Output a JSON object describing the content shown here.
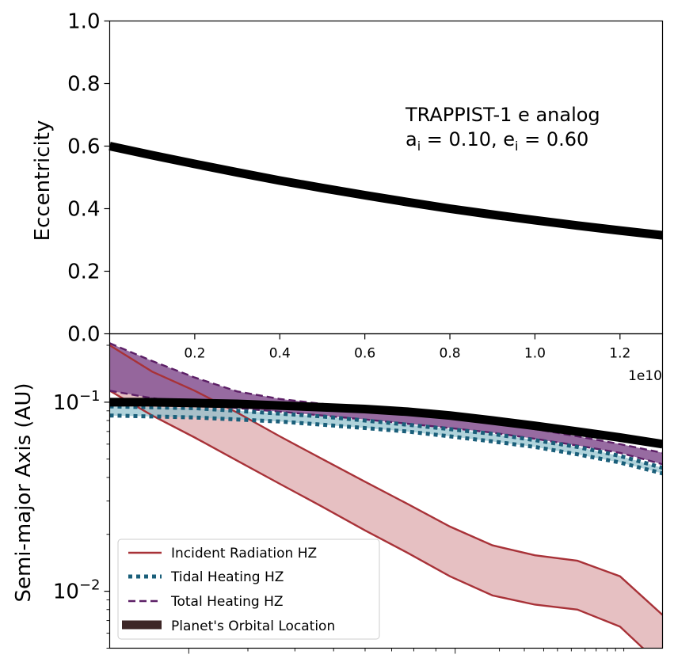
{
  "chart_data": [
    {
      "type": "line",
      "panel": "top",
      "ylabel": "Eccentricity",
      "xlabel": "",
      "xlim": [
        0,
        13000000000
      ],
      "ylim": [
        0,
        1
      ],
      "x_tick_labels": [
        "0.2",
        "0.4",
        "0.6",
        "0.8",
        "1.0",
        "1.2"
      ],
      "x_tick_values": [
        2000000000,
        4000000000,
        6000000000,
        8000000000,
        10000000000,
        12000000000
      ],
      "x_offset_label": "1e10",
      "y_tick_labels": [
        "0.0",
        "0.2",
        "0.4",
        "0.6",
        "0.8",
        "1.0"
      ],
      "annotation_line1": "TRAPPIST-1 e analog",
      "annotation_line2_a": "a",
      "annotation_line2_a_sub": "i",
      "annotation_line2_mid": " = 0.10, e",
      "annotation_line2_e_sub": "i",
      "annotation_line2_end": " = 0.60",
      "series": [
        {
          "x": [
            0,
            1000000000,
            2000000000,
            3000000000,
            4000000000,
            5000000000,
            6000000000,
            7000000000,
            8000000000,
            9000000000,
            10000000000,
            11000000000,
            12000000000,
            13000000000
          ],
          "values": [
            0.6,
            0.571,
            0.543,
            0.516,
            0.49,
            0.466,
            0.443,
            0.421,
            0.4,
            0.381,
            0.363,
            0.346,
            0.33,
            0.315
          ],
          "color": "#000000"
        }
      ]
    },
    {
      "type": "line",
      "panel": "bottom",
      "ylabel": "Semi-major Axis (AU)",
      "xlim": [
        0,
        13000000000
      ],
      "ylim": [
        0.005,
        0.23
      ],
      "yscale": "log",
      "y_tick_labels": [
        {
          "base": "10",
          "exp": "−1",
          "value": 0.1
        },
        {
          "base": "10",
          "exp": "−2",
          "value": 0.01
        }
      ],
      "legend_position": "lower-left",
      "colors": {
        "incident": "#a83238",
        "incident_fill": "#e6c0c2",
        "tidal": "#1a5f7a",
        "tidal_fill": "#8fc1cc",
        "total": "#5c1f66",
        "total_fill": "#8e5e99",
        "planet": "#000000",
        "planet_legend": "#3d2626"
      },
      "series": [
        {
          "name": "Incident Radiation HZ",
          "x": [
            0,
            1000000000,
            2000000000,
            3000000000,
            4000000000,
            5000000000,
            6000000000,
            7000000000,
            8000000000,
            9000000000,
            10000000000,
            11000000000,
            12000000000,
            13000000000
          ],
          "outer": [
            0.2,
            0.145,
            0.115,
            0.088,
            0.066,
            0.05,
            0.038,
            0.029,
            0.022,
            0.0175,
            0.0155,
            0.0145,
            0.012,
            0.0075
          ],
          "inner": [
            0.115,
            0.085,
            0.065,
            0.049,
            0.037,
            0.028,
            0.021,
            0.016,
            0.012,
            0.0095,
            0.0085,
            0.008,
            0.0065,
            0.004
          ]
        },
        {
          "name": "Tidal Heating HZ",
          "x": [
            0,
            1000000000,
            2000000000,
            3000000000,
            4000000000,
            5000000000,
            6000000000,
            7000000000,
            8000000000,
            9000000000,
            10000000000,
            11000000000,
            12000000000,
            13000000000
          ],
          "outer": [
            0.095,
            0.094,
            0.093,
            0.09,
            0.087,
            0.084,
            0.08,
            0.076,
            0.072,
            0.068,
            0.063,
            0.058,
            0.052,
            0.045
          ],
          "inner": [
            0.085,
            0.084,
            0.083,
            0.081,
            0.079,
            0.076,
            0.073,
            0.07,
            0.066,
            0.062,
            0.058,
            0.053,
            0.048,
            0.042
          ]
        },
        {
          "name": "Total Heating HZ",
          "x": [
            0,
            1000000000,
            2000000000,
            3000000000,
            4000000000,
            5000000000,
            6000000000,
            7000000000,
            8000000000,
            9000000000,
            10000000000,
            11000000000,
            12000000000,
            13000000000
          ],
          "outer": [
            0.205,
            0.165,
            0.135,
            0.114,
            0.104,
            0.098,
            0.093,
            0.088,
            0.083,
            0.078,
            0.072,
            0.066,
            0.06,
            0.054
          ],
          "inner": [
            0.115,
            0.105,
            0.098,
            0.093,
            0.089,
            0.085,
            0.081,
            0.077,
            0.073,
            0.069,
            0.064,
            0.059,
            0.054,
            0.047
          ]
        },
        {
          "name": "Planet's Orbital Location",
          "x": [
            0,
            1000000000,
            2000000000,
            3000000000,
            4000000000,
            5000000000,
            6000000000,
            7000000000,
            8000000000,
            9000000000,
            10000000000,
            11000000000,
            12000000000,
            13000000000
          ],
          "values": [
            0.1,
            0.1,
            0.099,
            0.098,
            0.096,
            0.094,
            0.092,
            0.089,
            0.085,
            0.08,
            0.075,
            0.07,
            0.065,
            0.06
          ]
        }
      ]
    }
  ]
}
